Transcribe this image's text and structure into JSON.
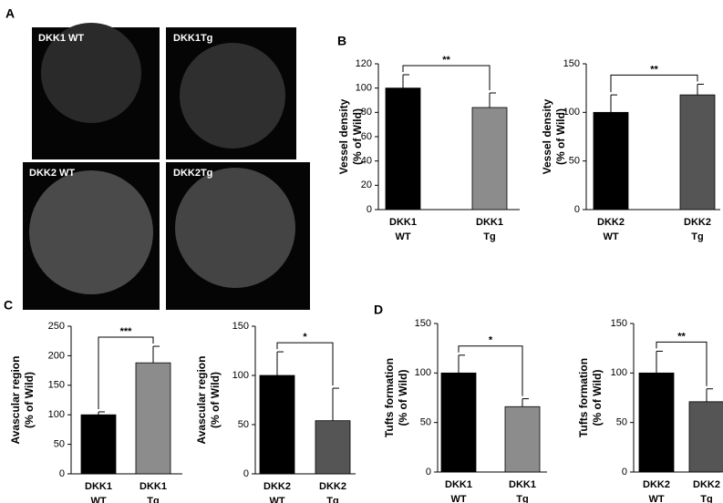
{
  "panel_labels": [
    "A",
    "B",
    "C",
    "D"
  ],
  "images": [
    "DKK1  WT",
    "DKK1Tg",
    "DKK2  WT",
    "DKK2Tg"
  ],
  "chart_data": [
    {
      "type": "bar",
      "y_label": [
        "Vessel density",
        "(% of Wild)"
      ],
      "categories": [
        [
          "DKK1",
          "WT"
        ],
        [
          "DKK1",
          "Tg"
        ]
      ],
      "values": [
        100,
        84
      ],
      "errors": [
        11,
        12
      ],
      "colors": [
        "#000000",
        "#8c8c8c"
      ],
      "annotation": "**",
      "ylim": [
        0,
        120
      ],
      "yticks": [
        0,
        20,
        40,
        60,
        80,
        100,
        120
      ]
    },
    {
      "type": "bar",
      "y_label": [
        "Vessel density",
        "(% of Wild)"
      ],
      "categories": [
        [
          "DKK2",
          "WT"
        ],
        [
          "DKK2",
          "Tg"
        ]
      ],
      "values": [
        100,
        118
      ],
      "errors": [
        18,
        11
      ],
      "colors": [
        "#000000",
        "#555555"
      ],
      "annotation": "**",
      "ylim": [
        0,
        150
      ],
      "yticks": [
        0,
        50,
        100,
        150
      ]
    },
    {
      "type": "bar",
      "y_label": [
        "Avascular region",
        "(% of Wild)"
      ],
      "categories": [
        [
          "DKK1",
          "WT"
        ],
        [
          "DKK1",
          "Tg"
        ]
      ],
      "values": [
        100,
        188
      ],
      "errors": [
        5,
        28
      ],
      "colors": [
        "#000000",
        "#8c8c8c"
      ],
      "annotation": "***",
      "ylim": [
        0,
        250
      ],
      "yticks": [
        0,
        50,
        100,
        150,
        200,
        250
      ]
    },
    {
      "type": "bar",
      "y_label": [
        "Avascular region",
        "(% of Wild)"
      ],
      "categories": [
        [
          "DKK2",
          "WT"
        ],
        [
          "DKK2",
          "Tg"
        ]
      ],
      "values": [
        100,
        54
      ],
      "errors": [
        24,
        33
      ],
      "colors": [
        "#000000",
        "#555555"
      ],
      "annotation": "*",
      "ylim": [
        0,
        150
      ],
      "yticks": [
        0,
        50,
        100,
        150
      ]
    },
    {
      "type": "bar",
      "y_label": [
        "Tufts formation",
        "(% of Wild)"
      ],
      "categories": [
        [
          "DKK1",
          "WT"
        ],
        [
          "DKK1",
          "Tg"
        ]
      ],
      "values": [
        100,
        66
      ],
      "errors": [
        18,
        8
      ],
      "colors": [
        "#000000",
        "#8c8c8c"
      ],
      "annotation": "*",
      "ylim": [
        0,
        150
      ],
      "yticks": [
        0,
        50,
        100,
        150
      ]
    },
    {
      "type": "bar",
      "y_label": [
        "Tufts formation",
        "(% of Wild)"
      ],
      "categories": [
        [
          "DKK2",
          "WT"
        ],
        [
          "DKK2",
          "Tg"
        ]
      ],
      "values": [
        100,
        71
      ],
      "errors": [
        22,
        13
      ],
      "colors": [
        "#000000",
        "#555555"
      ],
      "annotation": "**",
      "ylim": [
        0,
        150
      ],
      "yticks": [
        0,
        50,
        100,
        150
      ]
    }
  ]
}
